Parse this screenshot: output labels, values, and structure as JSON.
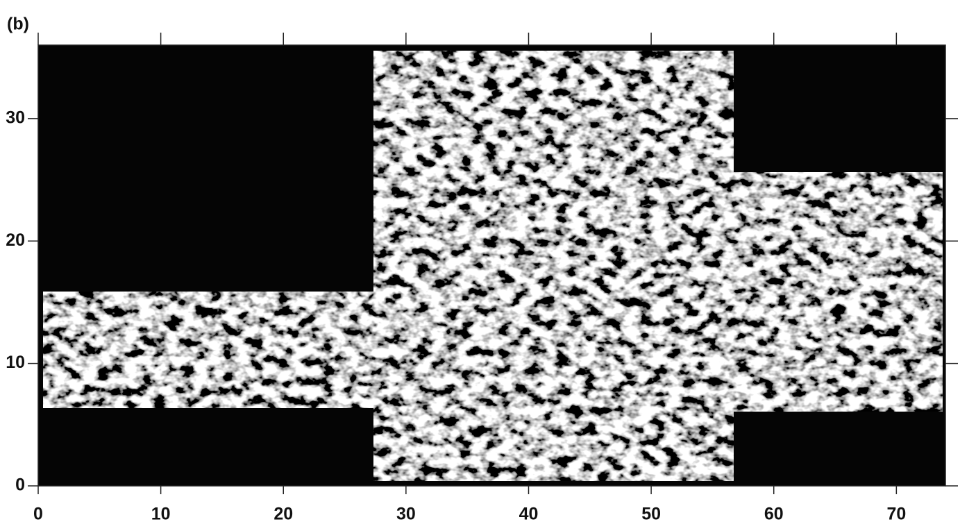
{
  "chart_data": {
    "type": "image",
    "title": "(b)",
    "xlim": [
      0,
      74
    ],
    "ylim": [
      0,
      36
    ],
    "xticks": [
      0,
      10,
      20,
      30,
      40,
      50,
      60,
      70
    ],
    "yticks": [
      0,
      10,
      20,
      30
    ]
  }
}
